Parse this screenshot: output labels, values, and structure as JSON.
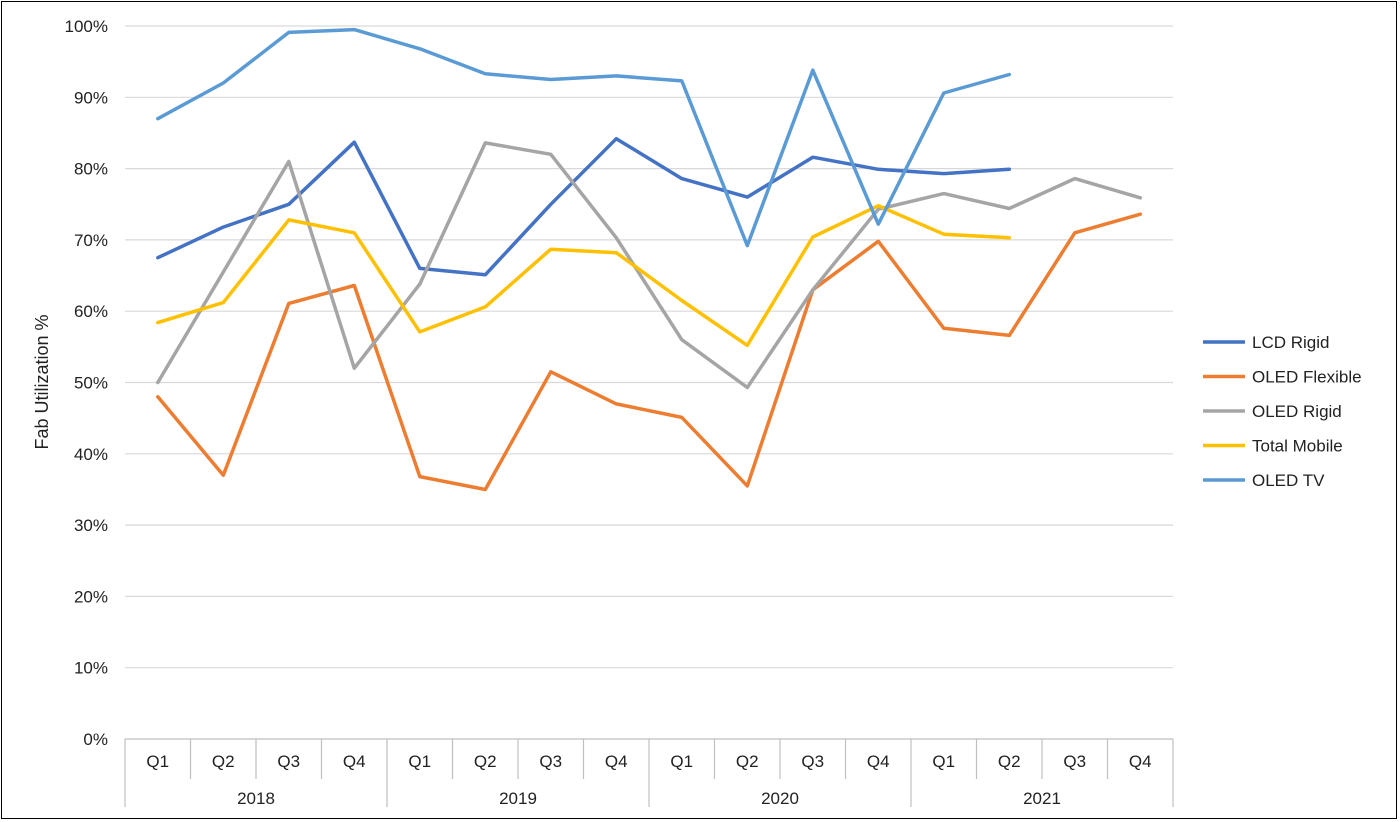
{
  "chart_data": {
    "type": "line",
    "ylabel": "Fab Utilization %",
    "ylim": [
      0,
      100
    ],
    "yticks": [
      "0%",
      "10%",
      "20%",
      "30%",
      "40%",
      "50%",
      "60%",
      "70%",
      "80%",
      "90%",
      "100%"
    ],
    "quarters": [
      "Q1",
      "Q2",
      "Q3",
      "Q4",
      "Q1",
      "Q2",
      "Q3",
      "Q4",
      "Q1",
      "Q2",
      "Q3",
      "Q4",
      "Q1",
      "Q2",
      "Q3",
      "Q4"
    ],
    "years": [
      "2018",
      "2019",
      "2020",
      "2021"
    ],
    "grid": true,
    "legend_position": "right",
    "series": [
      {
        "name": "LCD Rigid",
        "color": "#4472C4",
        "values": [
          67.5,
          71.8,
          75.0,
          83.7,
          66.0,
          65.1,
          75.0,
          84.2,
          78.6,
          76.0,
          81.6,
          79.9,
          79.3,
          79.9,
          null,
          null
        ]
      },
      {
        "name": "OLED Flexible",
        "color": "#ED7D31",
        "values": [
          48.0,
          37.0,
          61.1,
          63.6,
          36.8,
          35.0,
          51.5,
          47.0,
          45.1,
          35.5,
          63.0,
          69.8,
          57.6,
          56.6,
          71.0,
          73.6
        ]
      },
      {
        "name": "OLED Rigid",
        "color": "#A5A5A5",
        "values": [
          50.0,
          65.5,
          81.0,
          52.0,
          63.8,
          83.6,
          82.0,
          70.3,
          56.0,
          49.3,
          63.0,
          74.3,
          76.5,
          74.4,
          78.6,
          75.9
        ]
      },
      {
        "name": "Total Mobile",
        "color": "#FFC000",
        "values": [
          58.4,
          61.2,
          72.8,
          71.0,
          57.1,
          60.6,
          68.7,
          68.2,
          61.5,
          55.2,
          70.4,
          74.8,
          70.8,
          70.3,
          null,
          null
        ]
      },
      {
        "name": "OLED TV",
        "color": "#5B9BD5",
        "values": [
          87.0,
          92.0,
          99.1,
          99.5,
          96.8,
          93.3,
          92.5,
          93.0,
          92.3,
          69.2,
          93.8,
          72.2,
          90.6,
          93.2,
          null,
          null
        ]
      }
    ]
  }
}
